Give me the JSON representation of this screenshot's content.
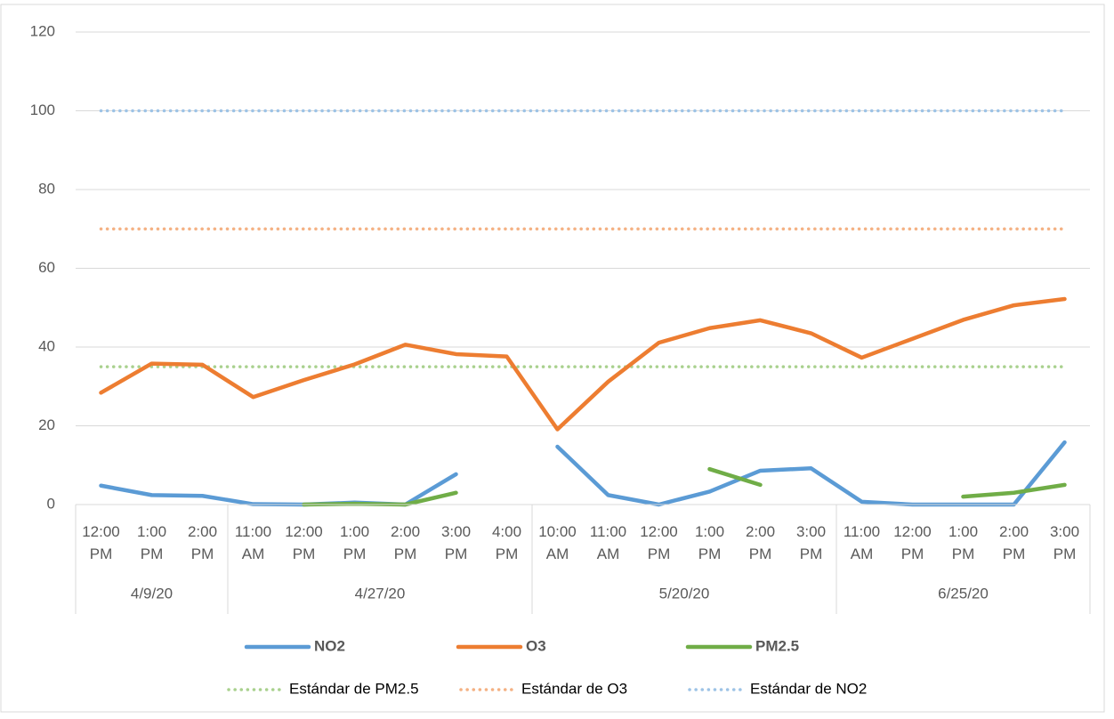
{
  "chart_data": {
    "type": "line",
    "categories": [
      "12:00 PM",
      "1:00 PM",
      "2:00 PM",
      "11:00 AM",
      "12:00 PM",
      "1:00 PM",
      "2:00 PM",
      "3:00 PM",
      "4:00 PM",
      "10:00 AM",
      "11:00 AM",
      "12:00 PM",
      "1:00 PM",
      "2:00 PM",
      "3:00 PM",
      "11:00 AM",
      "12:00 PM",
      "1:00 PM",
      "2:00 PM",
      "3:00 PM"
    ],
    "groups": [
      {
        "label": "4/9/20",
        "count": 3
      },
      {
        "label": "4/27/20",
        "count": 6
      },
      {
        "label": "5/20/20",
        "count": 6
      },
      {
        "label": "6/25/20",
        "count": 5
      }
    ],
    "series": [
      {
        "name": "NO2",
        "color": "#5b9bd5",
        "style": "solid",
        "values": [
          4.8,
          2.4,
          2.2,
          0.1,
          0,
          0.5,
          0,
          7.7,
          null,
          14.7,
          2.4,
          0,
          3.3,
          8.6,
          9.2,
          0.7,
          0,
          0,
          0,
          15.8
        ]
      },
      {
        "name": "O3",
        "color": "#ed7d31",
        "style": "solid",
        "values": [
          28.4,
          35.8,
          35.5,
          27.3,
          31.6,
          35.6,
          40.6,
          38.2,
          37.6,
          19.1,
          31.2,
          41.1,
          44.8,
          46.8,
          43.5,
          37.3,
          42.1,
          46.9,
          50.6,
          52.2
        ]
      },
      {
        "name": "PM2.5",
        "color": "#70ad47",
        "style": "solid",
        "values": [
          null,
          null,
          null,
          null,
          0,
          0.2,
          0,
          3,
          null,
          null,
          null,
          null,
          9,
          5,
          null,
          null,
          null,
          2,
          3,
          5
        ]
      },
      {
        "name": "Estándar de PM2.5",
        "color": "#a9d18e",
        "style": "dotted",
        "values": [
          35,
          35,
          35,
          35,
          35,
          35,
          35,
          35,
          35,
          35,
          35,
          35,
          35,
          35,
          35,
          35,
          35,
          35,
          35,
          35
        ]
      },
      {
        "name": "Estándar de O3",
        "color": "#f4b183",
        "style": "dotted",
        "values": [
          70,
          70,
          70,
          70,
          70,
          70,
          70,
          70,
          70,
          70,
          70,
          70,
          70,
          70,
          70,
          70,
          70,
          70,
          70,
          70
        ]
      },
      {
        "name": "Estándar de NO2",
        "color": "#9dc3e6",
        "style": "dotted",
        "values": [
          100,
          100,
          100,
          100,
          100,
          100,
          100,
          100,
          100,
          100,
          100,
          100,
          100,
          100,
          100,
          100,
          100,
          100,
          100,
          100
        ]
      }
    ],
    "ylim": [
      0,
      120
    ],
    "yticks": [
      0,
      20,
      40,
      60,
      80,
      100,
      120
    ],
    "grid": true
  }
}
